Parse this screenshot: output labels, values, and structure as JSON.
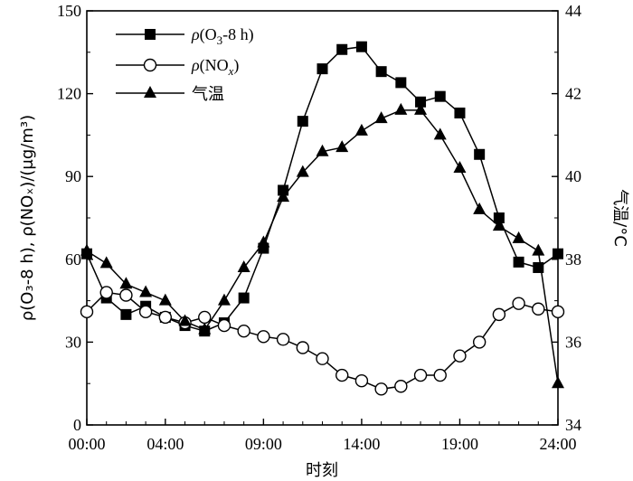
{
  "chart_data": {
    "type": "line",
    "xlabel": "时刻",
    "ylabel": "ρ(O₃-8 h), ρ(NOₓ)/(μg/m³)",
    "y2label": "气温/°C",
    "xlim": [
      0,
      24
    ],
    "ylim": [
      0,
      150
    ],
    "y2lim": [
      34,
      44
    ],
    "xticks": [
      0,
      4,
      9,
      14,
      19,
      24
    ],
    "xtick_labels": [
      "00:00",
      "04:00",
      "09:00",
      "14:00",
      "19:00",
      "24:00"
    ],
    "yticks": [
      0,
      30,
      60,
      90,
      120,
      150
    ],
    "y2ticks": [
      34,
      36,
      38,
      40,
      42,
      44
    ],
    "grid": false,
    "legend_position": "top-left",
    "x": [
      0,
      1,
      2,
      3,
      4,
      5,
      6,
      7,
      8,
      9,
      10,
      11,
      12,
      13,
      14,
      15,
      16,
      17,
      18,
      19,
      20,
      21,
      22,
      23,
      24
    ],
    "series": [
      {
        "name": "ρ(O3-8 h)",
        "axis": "left",
        "marker": "filled-square",
        "values": [
          62,
          46,
          40,
          43,
          39,
          36,
          34,
          37,
          46,
          64,
          85,
          110,
          129,
          136,
          137,
          128,
          124,
          117,
          119,
          113,
          98,
          75,
          59,
          57,
          62
        ]
      },
      {
        "name": "ρ(NOx)",
        "axis": "left",
        "marker": "open-circle",
        "values": [
          41,
          48,
          47,
          41,
          39,
          37,
          39,
          36,
          34,
          32,
          31,
          28,
          24,
          18,
          16,
          13,
          14,
          18,
          18,
          25,
          30,
          40,
          44,
          42,
          41
        ]
      },
      {
        "name": "气温",
        "axis": "right",
        "marker": "filled-triangle",
        "values": [
          38.2,
          37.9,
          37.4,
          37.2,
          37.0,
          36.5,
          36.3,
          37.0,
          37.8,
          38.4,
          39.5,
          40.1,
          40.6,
          40.7,
          41.1,
          41.4,
          41.6,
          41.6,
          41.0,
          40.2,
          39.2,
          38.8,
          38.5,
          38.2,
          35.0
        ]
      }
    ]
  }
}
